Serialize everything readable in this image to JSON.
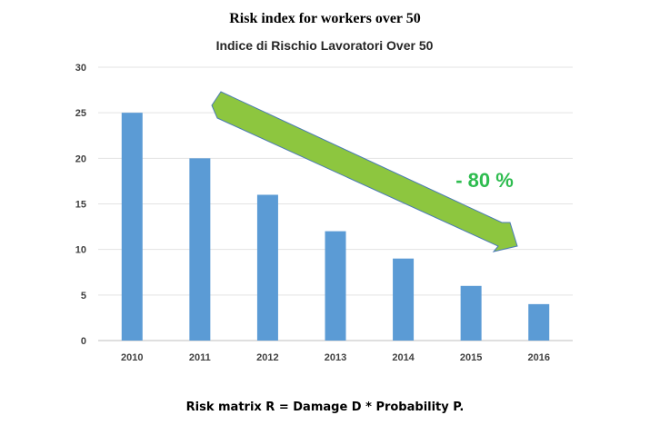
{
  "figure": {
    "title": "Risk index for workers over 50",
    "caption": "Risk matrix R = Damage D * Probability P."
  },
  "chart_data": {
    "type": "bar",
    "title": "Indice di Rischio Lavoratori Over 50",
    "categories": [
      "2010",
      "2011",
      "2012",
      "2013",
      "2014",
      "2015",
      "2016"
    ],
    "values": [
      25,
      20,
      16,
      12,
      9,
      6,
      4
    ],
    "ylim": [
      0,
      30
    ],
    "yticks": [
      0,
      5,
      10,
      15,
      20,
      25,
      30
    ],
    "xlabel": "",
    "ylabel": "",
    "grid": true,
    "legend": "none",
    "bar_color": "#5b9bd5",
    "annotation": {
      "text": "- 80 %",
      "text_color": "#2ebc4f",
      "arrow_color": "#8dc63f",
      "arrow_stroke": "#4a7ab5",
      "from_category": "2011",
      "to_category": "2016"
    }
  }
}
